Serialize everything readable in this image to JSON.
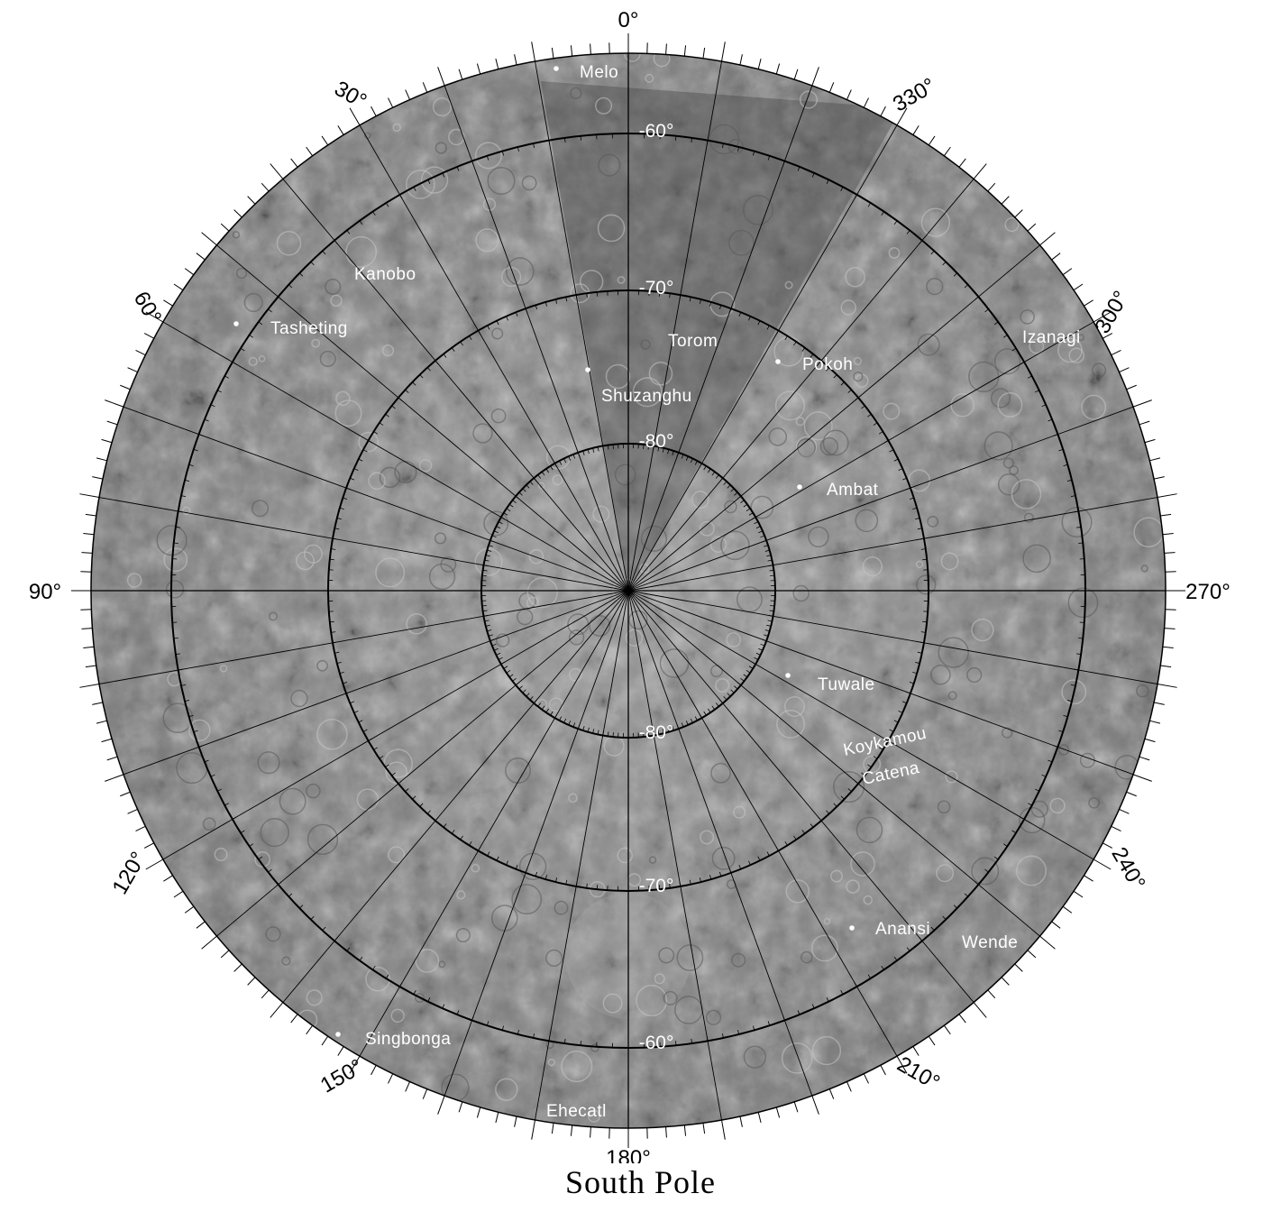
{
  "title": "South Pole",
  "longitude_labels": [
    {
      "lon": 0,
      "text": "0°"
    },
    {
      "lon": 30,
      "text": "30°"
    },
    {
      "lon": 60,
      "text": "60°"
    },
    {
      "lon": 90,
      "text": "90°"
    },
    {
      "lon": 120,
      "text": "120°"
    },
    {
      "lon": 150,
      "text": "150°"
    },
    {
      "lon": 180,
      "text": "180°"
    },
    {
      "lon": 210,
      "text": "210°"
    },
    {
      "lon": 240,
      "text": "240°"
    },
    {
      "lon": 270,
      "text": "270°"
    },
    {
      "lon": 300,
      "text": "300°"
    },
    {
      "lon": 330,
      "text": "330°"
    }
  ],
  "latitude_circles": [
    -80,
    -70,
    -60
  ],
  "latitude_labels": [
    {
      "lat": -60,
      "side": "top",
      "text": "-60°"
    },
    {
      "lat": -70,
      "side": "top",
      "text": "-70°"
    },
    {
      "lat": -80,
      "side": "top",
      "text": "-80°"
    },
    {
      "lat": -80,
      "side": "bottom",
      "text": "-80°"
    },
    {
      "lat": -70,
      "side": "bottom",
      "text": "-70°"
    },
    {
      "lat": -60,
      "side": "bottom",
      "text": "-60°"
    }
  ],
  "features": [
    {
      "name": "Melo",
      "dot": true
    },
    {
      "name": "Kanobo",
      "dot": false
    },
    {
      "name": "Tasheting",
      "dot": true
    },
    {
      "name": "Torom",
      "dot": false
    },
    {
      "name": "Pokoh",
      "dot": true
    },
    {
      "name": "Shuzanghu",
      "dot": true
    },
    {
      "name": "Izanagi",
      "dot": false
    },
    {
      "name": "Ambat",
      "dot": true
    },
    {
      "name": "Tuwale",
      "dot": true
    },
    {
      "name": "Koykamou",
      "dot": false
    },
    {
      "name": "Catena",
      "dot": false
    },
    {
      "name": "Anansi",
      "dot": true
    },
    {
      "name": "Wende",
      "dot": false
    },
    {
      "name": "Singbonga",
      "dot": true
    },
    {
      "name": "Ehecatl",
      "dot": false
    }
  ],
  "colors": {
    "surface": "#8c8c8c",
    "grid": "#000000",
    "labels": "#ffffff"
  }
}
